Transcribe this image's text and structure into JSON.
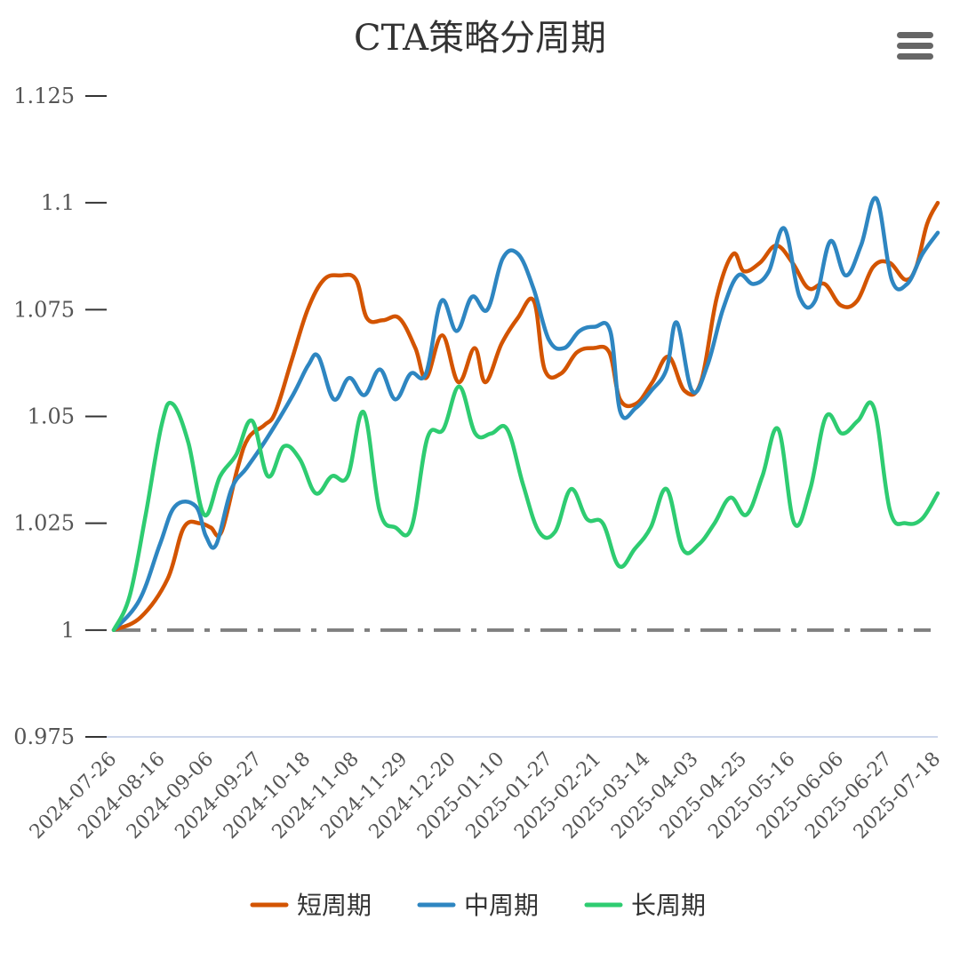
{
  "chart_data": {
    "type": "line",
    "title": "CTA策略分周期",
    "xlabel": "",
    "ylabel": "",
    "ylim": [
      0.975,
      1.125
    ],
    "yticks": [
      "0.975",
      "1",
      "1.025",
      "1.05",
      "1.075",
      "1.1",
      "1.125"
    ],
    "xtick_labels": [
      "2024-07-26",
      "2024-08-16",
      "2024-09-06",
      "2024-09-27",
      "2024-10-18",
      "2024-11-08",
      "2024-11-29",
      "2024-12-20",
      "2025-01-10",
      "2025-01-27",
      "2025-02-21",
      "2025-03-14",
      "2025-04-03",
      "2025-04-25",
      "2025-05-16",
      "2025-06-06",
      "2025-06-27",
      "2025-07-18"
    ],
    "reference_line": 1,
    "legend_position": "bottom-center",
    "series": [
      {
        "name": "短周期",
        "color": "#d35400",
        "values": [
          [
            0,
            1.0
          ],
          [
            0.5,
            1.003
          ],
          [
            1,
            1.012
          ],
          [
            1.3,
            1.024
          ],
          [
            1.6,
            1.025
          ],
          [
            1.8,
            1.024
          ],
          [
            2,
            1.023
          ],
          [
            2.3,
            1.038
          ],
          [
            2.5,
            1.045
          ],
          [
            2.8,
            1.048
          ],
          [
            3,
            1.051
          ],
          [
            3.3,
            1.063
          ],
          [
            3.6,
            1.075
          ],
          [
            3.9,
            1.082
          ],
          [
            4.2,
            1.083
          ],
          [
            4.5,
            1.082
          ],
          [
            4.7,
            1.073
          ],
          [
            5,
            1.0725
          ],
          [
            5.3,
            1.073
          ],
          [
            5.6,
            1.066
          ],
          [
            5.8,
            1.059
          ],
          [
            6.1,
            1.069
          ],
          [
            6.4,
            1.058
          ],
          [
            6.7,
            1.066
          ],
          [
            6.9,
            1.058
          ],
          [
            7.2,
            1.067
          ],
          [
            7.5,
            1.073
          ],
          [
            7.8,
            1.077
          ],
          [
            8.0,
            1.061
          ],
          [
            8.3,
            1.06
          ],
          [
            8.6,
            1.065
          ],
          [
            8.9,
            1.066
          ],
          [
            9.2,
            1.065
          ],
          [
            9.4,
            1.054
          ],
          [
            9.7,
            1.053
          ],
          [
            10.0,
            1.058
          ],
          [
            10.3,
            1.064
          ],
          [
            10.6,
            1.056
          ],
          [
            10.9,
            1.058
          ],
          [
            11.2,
            1.078
          ],
          [
            11.5,
            1.088
          ],
          [
            11.7,
            1.084
          ],
          [
            12.0,
            1.086
          ],
          [
            12.3,
            1.09
          ],
          [
            12.6,
            1.086
          ],
          [
            12.9,
            1.08
          ],
          [
            13.2,
            1.081
          ],
          [
            13.5,
            1.076
          ],
          [
            13.8,
            1.077
          ],
          [
            14.1,
            1.085
          ],
          [
            14.4,
            1.086
          ],
          [
            14.7,
            1.082
          ],
          [
            14.9,
            1.085
          ],
          [
            15.1,
            1.095
          ],
          [
            15.3,
            1.1
          ]
        ]
      },
      {
        "name": "中周期",
        "color": "#2e86c1",
        "values": [
          [
            0,
            1.0
          ],
          [
            0.5,
            1.007
          ],
          [
            0.9,
            1.02
          ],
          [
            1.2,
            1.029
          ],
          [
            1.6,
            1.029
          ],
          [
            1.8,
            1.022
          ],
          [
            2,
            1.02
          ],
          [
            2.3,
            1.033
          ],
          [
            2.6,
            1.038
          ],
          [
            3.0,
            1.045
          ],
          [
            3.5,
            1.055
          ],
          [
            3.8,
            1.062
          ],
          [
            4.0,
            1.064
          ],
          [
            4.3,
            1.054
          ],
          [
            4.6,
            1.059
          ],
          [
            4.9,
            1.055
          ],
          [
            5.2,
            1.061
          ],
          [
            5.5,
            1.054
          ],
          [
            5.8,
            1.06
          ],
          [
            6.1,
            1.06
          ],
          [
            6.4,
            1.077
          ],
          [
            6.7,
            1.07
          ],
          [
            7.0,
            1.078
          ],
          [
            7.3,
            1.075
          ],
          [
            7.6,
            1.087
          ],
          [
            7.9,
            1.088
          ],
          [
            8.2,
            1.08
          ],
          [
            8.5,
            1.068
          ],
          [
            8.8,
            1.066
          ],
          [
            9.1,
            1.07
          ],
          [
            9.4,
            1.071
          ],
          [
            9.7,
            1.07
          ],
          [
            9.9,
            1.051
          ],
          [
            10.2,
            1.052
          ],
          [
            10.5,
            1.056
          ],
          [
            10.8,
            1.061
          ],
          [
            11.0,
            1.072
          ],
          [
            11.3,
            1.056
          ],
          [
            11.6,
            1.062
          ],
          [
            11.9,
            1.075
          ],
          [
            12.2,
            1.083
          ],
          [
            12.5,
            1.081
          ],
          [
            12.8,
            1.084
          ],
          [
            13.1,
            1.094
          ],
          [
            13.4,
            1.078
          ],
          [
            13.7,
            1.077
          ],
          [
            14.0,
            1.091
          ],
          [
            14.3,
            1.083
          ],
          [
            14.6,
            1.09
          ],
          [
            14.9,
            1.101
          ],
          [
            15.2,
            1.082
          ],
          [
            15.5,
            1.081
          ],
          [
            15.8,
            1.088
          ],
          [
            16.1,
            1.093
          ]
        ]
      },
      {
        "name": "长周期",
        "color": "#2ecc71",
        "values": [
          [
            0,
            1.0
          ],
          [
            0.3,
            1.008
          ],
          [
            0.6,
            1.027
          ],
          [
            0.9,
            1.048
          ],
          [
            1.1,
            1.053
          ],
          [
            1.4,
            1.044
          ],
          [
            1.7,
            1.027
          ],
          [
            2.0,
            1.036
          ],
          [
            2.3,
            1.041
          ],
          [
            2.6,
            1.049
          ],
          [
            2.9,
            1.036
          ],
          [
            3.2,
            1.043
          ],
          [
            3.5,
            1.04
          ],
          [
            3.8,
            1.032
          ],
          [
            4.1,
            1.036
          ],
          [
            4.4,
            1.036
          ],
          [
            4.7,
            1.051
          ],
          [
            5.0,
            1.028
          ],
          [
            5.3,
            1.024
          ],
          [
            5.6,
            1.024
          ],
          [
            5.9,
            1.045
          ],
          [
            6.2,
            1.047
          ],
          [
            6.5,
            1.057
          ],
          [
            6.8,
            1.046
          ],
          [
            7.1,
            1.046
          ],
          [
            7.4,
            1.047
          ],
          [
            7.7,
            1.034
          ],
          [
            8.0,
            1.023
          ],
          [
            8.3,
            1.023
          ],
          [
            8.6,
            1.033
          ],
          [
            8.9,
            1.026
          ],
          [
            9.2,
            1.025
          ],
          [
            9.5,
            1.015
          ],
          [
            9.8,
            1.019
          ],
          [
            10.1,
            1.024
          ],
          [
            10.4,
            1.033
          ],
          [
            10.7,
            1.019
          ],
          [
            11.0,
            1.02
          ],
          [
            11.3,
            1.025
          ],
          [
            11.6,
            1.031
          ],
          [
            11.9,
            1.027
          ],
          [
            12.2,
            1.036
          ],
          [
            12.5,
            1.047
          ],
          [
            12.8,
            1.025
          ],
          [
            13.1,
            1.033
          ],
          [
            13.4,
            1.05
          ],
          [
            13.7,
            1.046
          ],
          [
            14.0,
            1.049
          ],
          [
            14.3,
            1.052
          ],
          [
            14.6,
            1.028
          ],
          [
            14.9,
            1.025
          ],
          [
            15.2,
            1.026
          ],
          [
            15.5,
            1.032
          ]
        ]
      }
    ]
  },
  "menu": {
    "icon": "hamburger-menu-icon"
  }
}
